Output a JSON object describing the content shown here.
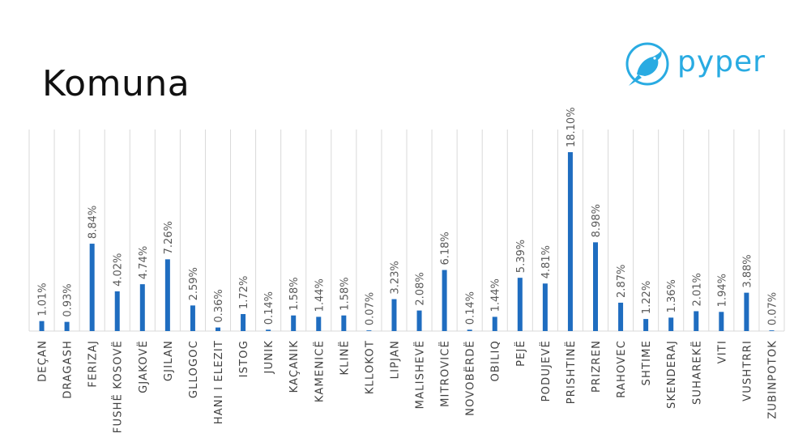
{
  "slide": {
    "title": "Komuna"
  },
  "logo": {
    "text": "pyper",
    "icon": "bird-in-circle-icon",
    "color": "#29ABE2"
  },
  "chart_data": {
    "type": "bar",
    "title": "Komuna",
    "bar_color": "#1F6DC0",
    "grid": "vertical",
    "categories": [
      "DEÇAN",
      "DRAGASH",
      "FERIZAJ",
      "FUSHË KOSOVË",
      "GJAKOVË",
      "GJILAN",
      "GLLOGOC",
      "HANI I ELEZIT",
      "ISTOG",
      "JUNIK",
      "KAÇANIK",
      "KAMENICË",
      "KLINË",
      "KLLOKOT",
      "LIPJAN",
      "MALISHEVË",
      "MITROVICË",
      "NOVOBËRDË",
      "OBILIQ",
      "PEJË",
      "PODUJEVË",
      "PRISHTINË",
      "PRIZREN",
      "RAHOVEC",
      "SHTIME",
      "SKENDERAJ",
      "SUHAREKË",
      "VITI",
      "VUSHTRRI",
      "ZUBINPOTOK"
    ],
    "values": [
      1.01,
      0.93,
      8.84,
      4.02,
      4.74,
      7.26,
      2.59,
      0.36,
      1.72,
      0.14,
      1.58,
      1.44,
      1.58,
      0.07,
      3.23,
      2.08,
      6.18,
      0.14,
      1.44,
      5.39,
      4.81,
      18.1,
      8.98,
      2.87,
      1.22,
      1.36,
      2.01,
      1.94,
      3.88,
      0.07
    ],
    "labels": [
      "1.01%",
      "0.93%",
      "8.84%",
      "4.02%",
      "4.74%",
      "7.26%",
      "2.59%",
      "0.36%",
      "1.72%",
      "0.14%",
      "1.58%",
      "1.44%",
      "1.58%",
      "0.07%",
      "3.23%",
      "2.08%",
      "6.18%",
      "0.14%",
      "1.44%",
      "5.39%",
      "4.81%",
      "18.10%",
      "8.98%",
      "2.87%",
      "1.22%",
      "1.36%",
      "2.01%",
      "1.94%",
      "3.88%",
      "0.07%"
    ]
  }
}
